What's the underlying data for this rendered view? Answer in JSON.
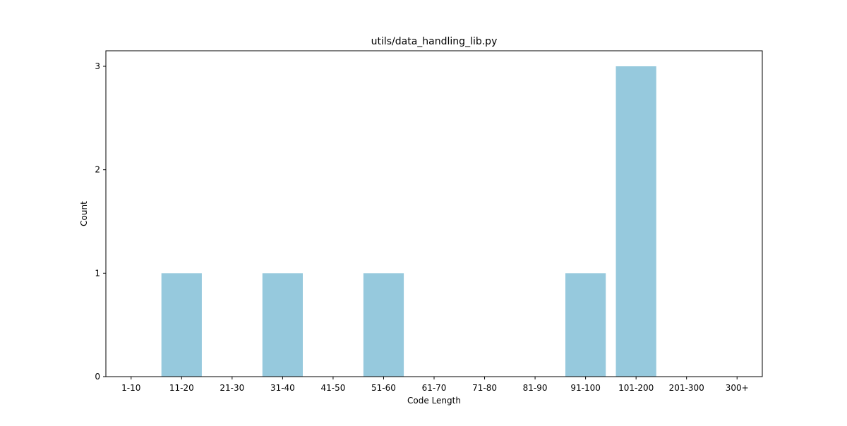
{
  "chart_data": {
    "type": "bar",
    "title": "utils/data_handling_lib.py",
    "xlabel": "Code Length",
    "ylabel": "Count",
    "categories": [
      "1-10",
      "11-20",
      "21-30",
      "31-40",
      "41-50",
      "51-60",
      "61-70",
      "71-80",
      "81-90",
      "91-100",
      "101-200",
      "201-300",
      "300+"
    ],
    "values": [
      0,
      1,
      0,
      1,
      0,
      1,
      0,
      0,
      0,
      1,
      3,
      0,
      0
    ],
    "ylim": [
      0,
      3.15
    ],
    "yticks": [
      0,
      1,
      2,
      3
    ],
    "grid": false,
    "colors": {
      "bar": "#96c9dd",
      "axis": "#000000",
      "text": "#000000",
      "background": "#ffffff"
    }
  }
}
